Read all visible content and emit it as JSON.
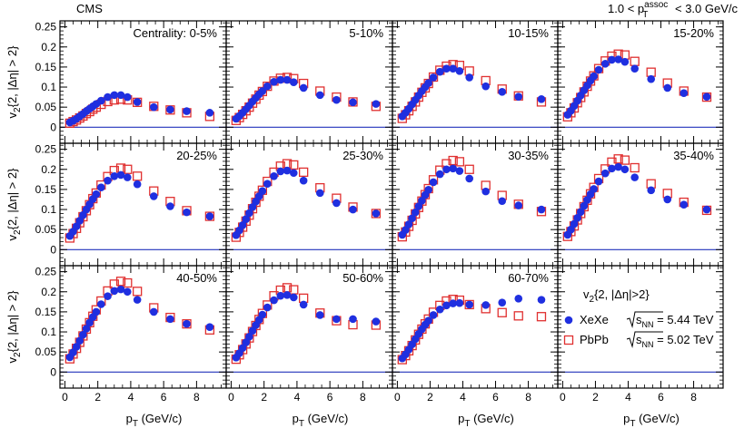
{
  "chart_data": {
    "type": "scatter",
    "experiment_label": "CMS",
    "kinematic_cut": {
      "base": "1.0 < p",
      "sub": "T",
      "sup": "assoc",
      "tail": " < 3.0 GeV/c"
    },
    "xlabel": {
      "base": "p",
      "sub": "T",
      "tail": " (GeV/c)"
    },
    "ylabel": {
      "base": "v",
      "sub": "2",
      "tail": "{2, |Δη| > 2}"
    },
    "xlim": [
      -0.3,
      9.8
    ],
    "ylim": [
      -0.04,
      0.265
    ],
    "x_ticks": [
      0,
      2,
      4,
      6,
      8
    ],
    "x_tick_labels": [
      "0",
      "2",
      "4",
      "6",
      "8"
    ],
    "y_ticks": [
      0,
      0.05,
      0.1,
      0.15,
      0.2,
      0.25
    ],
    "y_tick_labels": [
      "0",
      "0.05",
      "0.1",
      "0.15",
      "0.2",
      "0.25"
    ],
    "pt": [
      0.3,
      0.5,
      0.7,
      0.9,
      1.1,
      1.3,
      1.5,
      1.7,
      1.9,
      2.2,
      2.6,
      3.0,
      3.4,
      3.8,
      4.4,
      5.4,
      6.4,
      7.4,
      8.8
    ],
    "series_names": [
      "XeXe",
      "PbPb"
    ],
    "legend": {
      "title": {
        "base": "v",
        "sub": "2",
        "tail": "{2, |Δη|>2}"
      },
      "entries": [
        {
          "label": "XeXe",
          "energy": {
            "pre": "s",
            "sub": "NN",
            "tail": " = 5.44 TeV"
          },
          "marker": "filled-circle",
          "color": "#1f2fe0"
        },
        {
          "label": "PbPb",
          "energy": {
            "pre": "s",
            "sub": "NN",
            "tail": " = 5.02 TeV"
          },
          "marker": "open-square",
          "color": "#e03030"
        }
      ]
    },
    "panels": [
      {
        "label": "Centrality: 0-5%",
        "xexe": [
          0.012,
          0.016,
          0.021,
          0.027,
          0.033,
          0.04,
          0.046,
          0.052,
          0.058,
          0.066,
          0.075,
          0.08,
          0.08,
          0.075,
          0.063,
          0.05,
          0.044,
          0.04,
          0.036
        ],
        "pbpb": [
          0.01,
          0.014,
          0.018,
          0.023,
          0.028,
          0.034,
          0.039,
          0.045,
          0.05,
          0.057,
          0.064,
          0.068,
          0.07,
          0.068,
          0.062,
          0.052,
          0.043,
          0.036,
          0.027
        ]
      },
      {
        "label": "5-10%",
        "xexe": [
          0.021,
          0.028,
          0.036,
          0.045,
          0.054,
          0.064,
          0.073,
          0.082,
          0.09,
          0.102,
          0.113,
          0.118,
          0.118,
          0.112,
          0.098,
          0.08,
          0.068,
          0.062,
          0.058
        ],
        "pbpb": [
          0.017,
          0.024,
          0.032,
          0.041,
          0.05,
          0.06,
          0.07,
          0.08,
          0.089,
          0.102,
          0.115,
          0.122,
          0.124,
          0.121,
          0.109,
          0.09,
          0.075,
          0.063,
          0.052
        ]
      },
      {
        "label": "10-15%",
        "xexe": [
          0.027,
          0.036,
          0.046,
          0.057,
          0.068,
          0.079,
          0.09,
          0.1,
          0.11,
          0.124,
          0.138,
          0.146,
          0.146,
          0.14,
          0.124,
          0.102,
          0.088,
          0.076,
          0.07
        ],
        "pbpb": [
          0.022,
          0.031,
          0.041,
          0.052,
          0.063,
          0.075,
          0.087,
          0.098,
          0.109,
          0.125,
          0.142,
          0.152,
          0.156,
          0.154,
          0.14,
          0.116,
          0.095,
          0.078,
          0.063
        ]
      },
      {
        "label": "15-20%",
        "xexe": [
          0.031,
          0.041,
          0.053,
          0.066,
          0.079,
          0.092,
          0.104,
          0.116,
          0.127,
          0.143,
          0.158,
          0.168,
          0.169,
          0.163,
          0.146,
          0.12,
          0.098,
          0.085,
          0.076
        ],
        "pbpb": [
          0.026,
          0.036,
          0.048,
          0.061,
          0.074,
          0.088,
          0.102,
          0.115,
          0.128,
          0.146,
          0.165,
          0.177,
          0.182,
          0.18,
          0.164,
          0.137,
          0.11,
          0.09,
          0.075
        ]
      },
      {
        "label": "20-25%",
        "xexe": [
          0.034,
          0.045,
          0.058,
          0.072,
          0.086,
          0.1,
          0.113,
          0.126,
          0.138,
          0.155,
          0.172,
          0.183,
          0.186,
          0.18,
          0.163,
          0.133,
          0.108,
          0.093,
          0.083
        ],
        "pbpb": [
          0.029,
          0.04,
          0.053,
          0.067,
          0.082,
          0.097,
          0.112,
          0.127,
          0.141,
          0.161,
          0.182,
          0.197,
          0.203,
          0.2,
          0.183,
          0.146,
          0.12,
          0.097,
          0.083
        ]
      },
      {
        "label": "25-30%",
        "xexe": [
          0.036,
          0.048,
          0.061,
          0.076,
          0.091,
          0.106,
          0.12,
          0.133,
          0.146,
          0.164,
          0.183,
          0.195,
          0.197,
          0.191,
          0.172,
          0.141,
          0.116,
          0.1,
          0.09
        ],
        "pbpb": [
          0.031,
          0.043,
          0.056,
          0.071,
          0.086,
          0.102,
          0.118,
          0.133,
          0.148,
          0.17,
          0.193,
          0.208,
          0.214,
          0.211,
          0.193,
          0.154,
          0.128,
          0.106,
          0.09
        ]
      },
      {
        "label": "30-35%",
        "xexe": [
          0.037,
          0.049,
          0.063,
          0.078,
          0.093,
          0.108,
          0.122,
          0.136,
          0.149,
          0.168,
          0.188,
          0.2,
          0.202,
          0.196,
          0.177,
          0.145,
          0.121,
          0.11,
          0.1
        ],
        "pbpb": [
          0.032,
          0.044,
          0.058,
          0.073,
          0.089,
          0.105,
          0.121,
          0.137,
          0.152,
          0.174,
          0.198,
          0.214,
          0.222,
          0.219,
          0.2,
          0.16,
          0.135,
          0.113,
          0.095
        ]
      },
      {
        "label": "35-40%",
        "xexe": [
          0.037,
          0.05,
          0.064,
          0.079,
          0.094,
          0.109,
          0.124,
          0.138,
          0.151,
          0.17,
          0.19,
          0.202,
          0.206,
          0.2,
          0.18,
          0.148,
          0.125,
          0.112,
          0.1
        ],
        "pbpb": [
          0.033,
          0.045,
          0.059,
          0.074,
          0.09,
          0.107,
          0.123,
          0.139,
          0.155,
          0.177,
          0.201,
          0.218,
          0.226,
          0.223,
          0.204,
          0.164,
          0.14,
          0.118,
          0.098
        ]
      },
      {
        "label": "40-50%",
        "xexe": [
          0.037,
          0.049,
          0.063,
          0.078,
          0.093,
          0.108,
          0.123,
          0.137,
          0.15,
          0.169,
          0.189,
          0.202,
          0.206,
          0.2,
          0.18,
          0.15,
          0.132,
          0.12,
          0.112
        ],
        "pbpb": [
          0.033,
          0.045,
          0.059,
          0.074,
          0.09,
          0.107,
          0.123,
          0.139,
          0.155,
          0.177,
          0.202,
          0.219,
          0.226,
          0.222,
          0.201,
          0.16,
          0.136,
          0.12,
          0.105
        ]
      },
      {
        "label": "50-60%",
        "xexe": [
          0.036,
          0.047,
          0.06,
          0.074,
          0.088,
          0.103,
          0.117,
          0.13,
          0.143,
          0.161,
          0.179,
          0.19,
          0.192,
          0.186,
          0.168,
          0.142,
          0.132,
          0.132,
          0.126
        ],
        "pbpb": [
          0.032,
          0.043,
          0.056,
          0.07,
          0.085,
          0.101,
          0.116,
          0.131,
          0.146,
          0.167,
          0.19,
          0.204,
          0.21,
          0.205,
          0.184,
          0.147,
          0.128,
          0.118,
          0.117
        ]
      },
      {
        "label": "60-70%",
        "xexe": [
          0.034,
          0.044,
          0.056,
          0.069,
          0.082,
          0.095,
          0.107,
          0.118,
          0.128,
          0.142,
          0.156,
          0.166,
          0.171,
          0.172,
          0.168,
          0.167,
          0.173,
          0.183,
          0.18
        ],
        "pbpb": [
          0.031,
          0.041,
          0.053,
          0.066,
          0.08,
          0.094,
          0.107,
          0.12,
          0.132,
          0.149,
          0.166,
          0.177,
          0.181,
          0.179,
          0.168,
          0.158,
          0.148,
          0.14,
          0.138
        ]
      }
    ]
  }
}
